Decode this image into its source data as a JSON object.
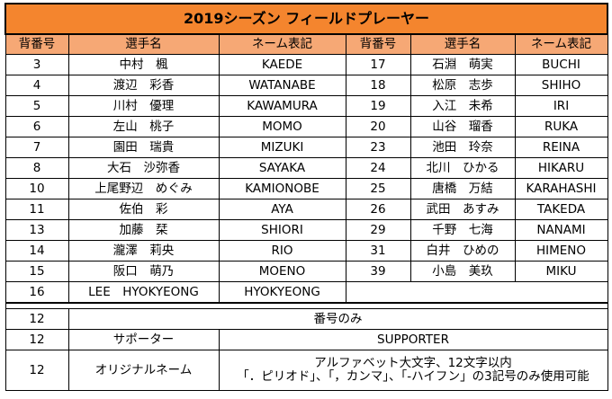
{
  "title": "2019シーズン フィールドプレーヤー",
  "headers": [
    "背番号",
    "選手名",
    "ネーム表記",
    "背番号",
    "選手名",
    "ネーム表記"
  ],
  "rows": [
    [
      {
        "num": "3",
        "name": "中村　楓",
        "roman": "KAEDE"
      },
      {
        "num": "17",
        "name": "石淵　萌実",
        "roman": "BUCHI"
      }
    ],
    [
      {
        "num": "4",
        "name": "渡辺　彩香",
        "roman": "WATANABE"
      },
      {
        "num": "18",
        "name": "松原　志歩",
        "roman": "SHIHO"
      }
    ],
    [
      {
        "num": "5",
        "name": "川村　優理",
        "roman": "KAWAMURA"
      },
      {
        "num": "19",
        "name": "入江　未希",
        "roman": "IRI"
      }
    ],
    [
      {
        "num": "6",
        "name": "左山　桃子",
        "roman": "MOMO"
      },
      {
        "num": "20",
        "name": "山谷　瑠香",
        "roman": "RUKA"
      }
    ],
    [
      {
        "num": "7",
        "name": "園田　瑞貴",
        "roman": "MIZUKI"
      },
      {
        "num": "23",
        "name": "池田　玲奈",
        "roman": "REINA"
      }
    ],
    [
      {
        "num": "8",
        "name": "大石　沙弥香",
        "roman": "SAYAKA"
      },
      {
        "num": "24",
        "name": "北川　ひかる",
        "roman": "HIKARU"
      }
    ],
    [
      {
        "num": "10",
        "name": "上尾野辺　めぐみ",
        "roman": "KAMIONOBE"
      },
      {
        "num": "25",
        "name": "唐橋　万結",
        "roman": "KARAHASHI"
      }
    ],
    [
      {
        "num": "11",
        "name": "佐伯　彩",
        "roman": "AYA"
      },
      {
        "num": "26",
        "name": "武田　あすみ",
        "roman": "TAKEDA"
      }
    ],
    [
      {
        "num": "13",
        "name": "加藤　栞",
        "roman": "SHIORI"
      },
      {
        "num": "29",
        "name": "千野　七海",
        "roman": "NANAMI"
      }
    ],
    [
      {
        "num": "14",
        "name": "瀧澤　莉央",
        "roman": "RIO"
      },
      {
        "num": "31",
        "name": "白井　ひめの",
        "roman": "HIMENO"
      }
    ],
    [
      {
        "num": "15",
        "name": "阪口　萌乃",
        "roman": "MOENO"
      },
      {
        "num": "39",
        "name": "小島　美玖",
        "roman": "MIKU"
      }
    ],
    [
      {
        "num": "16",
        "name": "LEE　HYOKYEONG",
        "roman": "HYOKYEONG"
      },
      null
    ]
  ],
  "notes": [
    {
      "num": "12",
      "label": "",
      "value": "番号のみ"
    },
    {
      "num": "12",
      "label": "サポーター",
      "value": "SUPPORTER"
    },
    {
      "num": "12",
      "label": "オリジナルネーム",
      "value_lines": [
        "アルファベット大文字、12文字以内",
        "「．ピリオド」、「，カンマ」、「-ハイフン」の3記号のみ使用可能"
      ]
    }
  ]
}
